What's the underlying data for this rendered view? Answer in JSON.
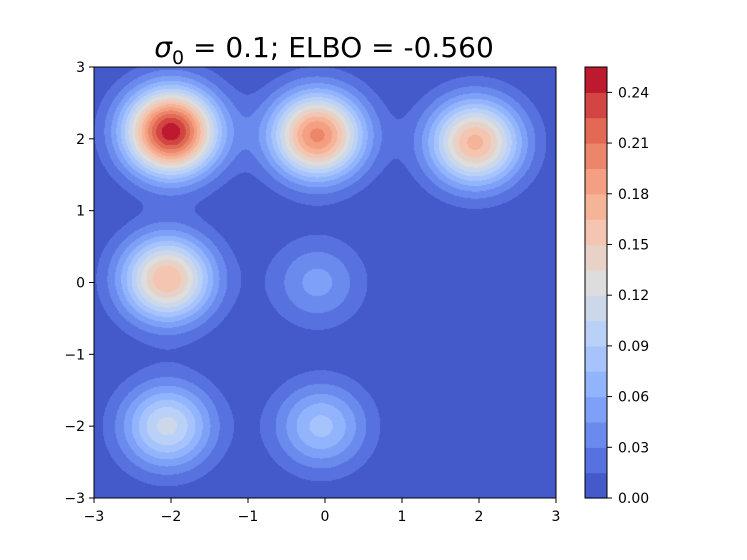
{
  "chart_data": {
    "type": "heatmap",
    "subtype": "filled-contour",
    "title": {
      "prefix": "σ",
      "subscript": "0",
      "rest": " = 0.1; ELBO = -0.560"
    },
    "xlabel": "",
    "ylabel": "",
    "xlim": [
      -3,
      3
    ],
    "ylim": [
      -3,
      3
    ],
    "x_ticks": [
      {
        "value": -3,
        "label": "−3"
      },
      {
        "value": -2,
        "label": "−2"
      },
      {
        "value": -1,
        "label": "−1"
      },
      {
        "value": 0,
        "label": "0"
      },
      {
        "value": 1,
        "label": "1"
      },
      {
        "value": 2,
        "label": "2"
      },
      {
        "value": 3,
        "label": "3"
      }
    ],
    "y_ticks": [
      {
        "value": -3,
        "label": "−3"
      },
      {
        "value": -2,
        "label": "−2"
      },
      {
        "value": -1,
        "label": "−1"
      },
      {
        "value": 0,
        "label": "0"
      },
      {
        "value": 1,
        "label": "1"
      },
      {
        "value": 2,
        "label": "2"
      },
      {
        "value": 3,
        "label": "3"
      }
    ],
    "colormap": "coolwarm",
    "grid": false,
    "colorbar": {
      "placement": "right",
      "min": 0.0,
      "max": 0.255,
      "levels": 17,
      "ticks": [
        {
          "value": 0.0,
          "label": "0.00"
        },
        {
          "value": 0.03,
          "label": "0.03"
        },
        {
          "value": 0.06,
          "label": "0.06"
        },
        {
          "value": 0.09,
          "label": "0.09"
        },
        {
          "value": 0.12,
          "label": "0.12"
        },
        {
          "value": 0.15,
          "label": "0.15"
        },
        {
          "value": 0.18,
          "label": "0.18"
        },
        {
          "value": 0.21,
          "label": "0.21"
        },
        {
          "value": 0.24,
          "label": "0.24"
        }
      ]
    },
    "peaks": [
      {
        "x": -2.0,
        "y": 2.1,
        "value": 0.25
      },
      {
        "x": -0.1,
        "y": 2.05,
        "value": 0.2
      },
      {
        "x": 1.95,
        "y": 1.95,
        "value": 0.17
      },
      {
        "x": -2.05,
        "y": 0.05,
        "value": 0.165
      },
      {
        "x": -0.1,
        "y": 0.0,
        "value": 0.05
      },
      {
        "x": -2.05,
        "y": -2.0,
        "value": 0.11
      },
      {
        "x": -0.05,
        "y": -2.0,
        "value": 0.08
      }
    ]
  }
}
